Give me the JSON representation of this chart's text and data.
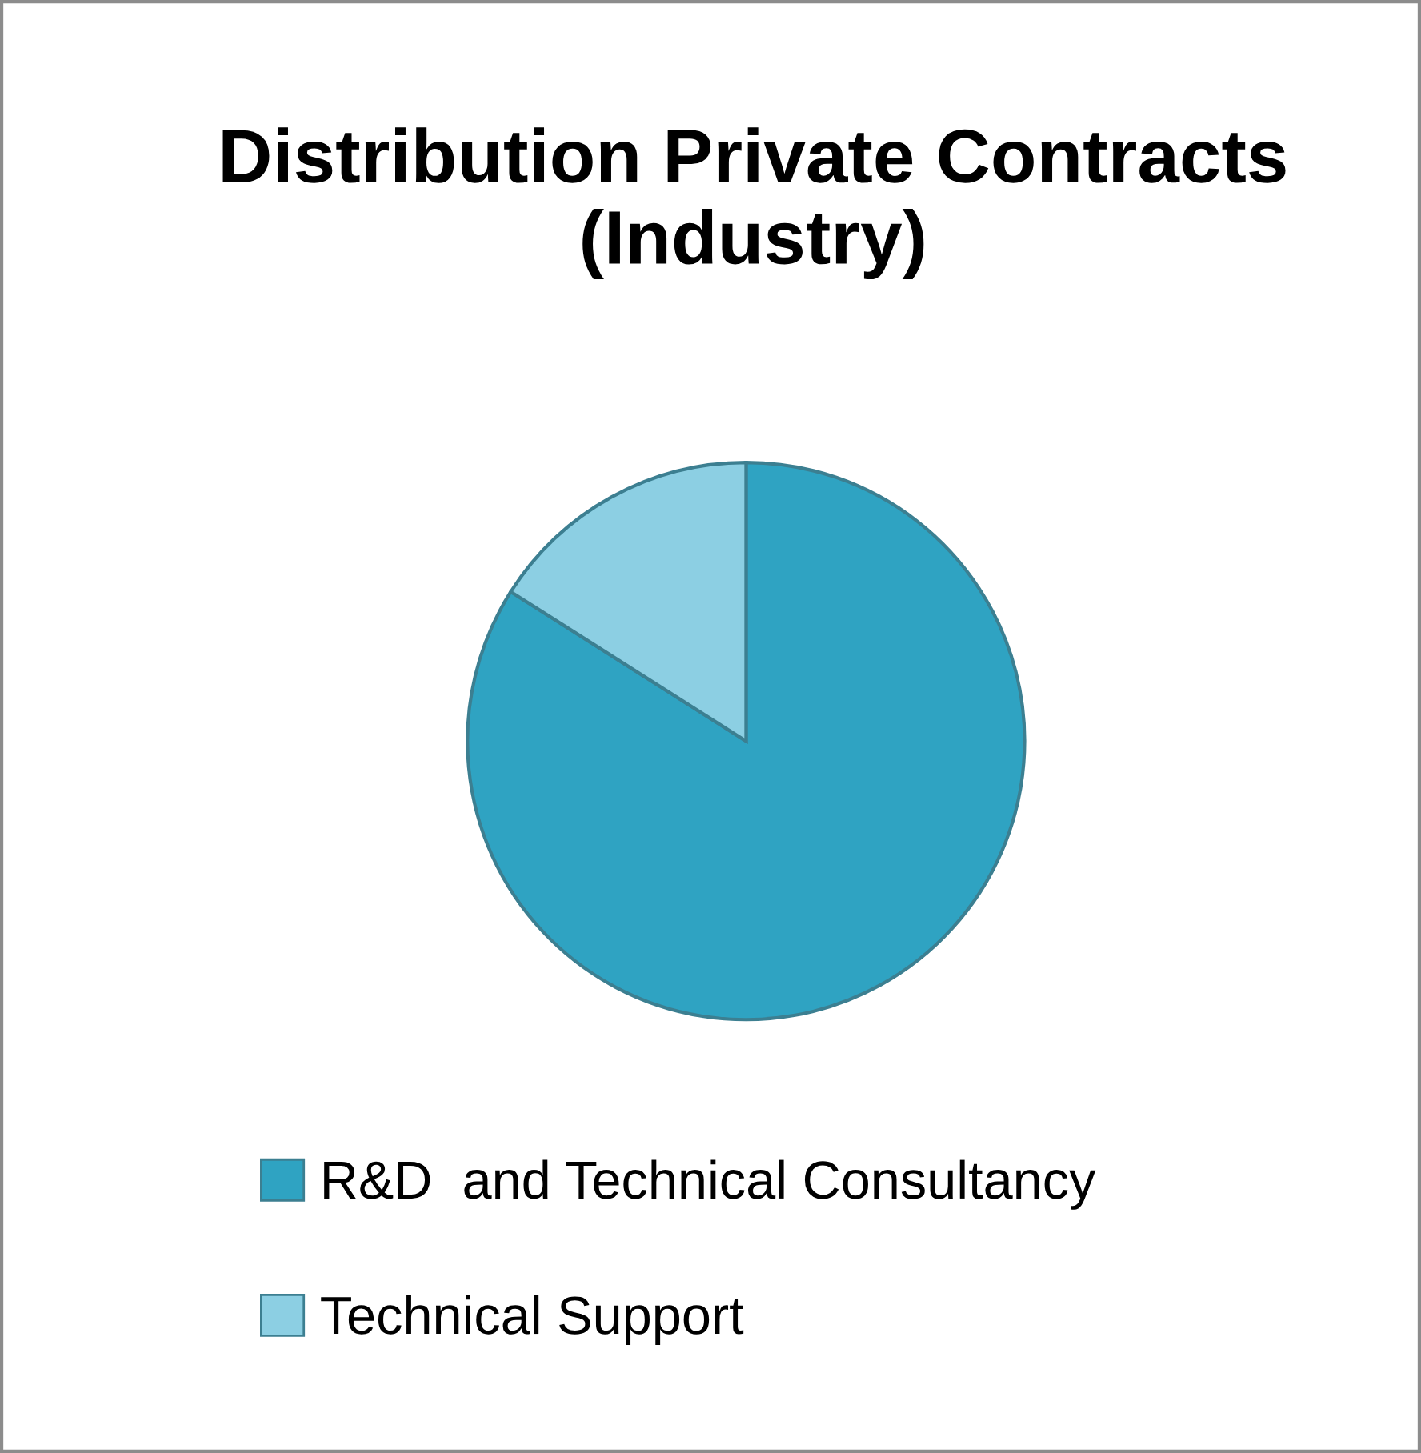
{
  "chart_data": {
    "type": "pie",
    "title": "Distribution Private Contracts (Industry)",
    "categories": [
      "R&D  and Technical Consultancy",
      "Technical Support"
    ],
    "values": [
      84,
      16
    ],
    "colors": [
      "#2fa3c2",
      "#8ccfe3"
    ],
    "legend": "bottom"
  }
}
